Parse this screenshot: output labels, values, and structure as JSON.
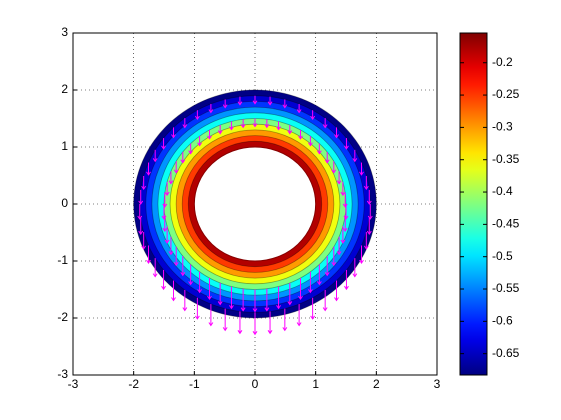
{
  "chart_data": {
    "type": "contour",
    "r": [
      1,
      1.1,
      1.2,
      1.3,
      1.4,
      1.5,
      1.6,
      1.7,
      1.8,
      1.9,
      2
    ],
    "values": [
      -0.17,
      -0.18,
      -0.25,
      -0.3,
      -0.36,
      -0.42,
      -0.48,
      -0.54,
      -0.59,
      -0.64,
      -0.68
    ],
    "xlim": [
      -3,
      3
    ],
    "ylim": [
      -3,
      3
    ],
    "xticks": [
      -3,
      -2,
      -1,
      0,
      1,
      2,
      3
    ],
    "yticks": [
      -3,
      -2,
      -1,
      0,
      1,
      2,
      3
    ],
    "grid": true,
    "colormap": "jet",
    "arrow_color": "#ff00ff",
    "clim": [
      -0.683,
      -0.154
    ],
    "cticks": [
      -0.2,
      -0.25,
      -0.3,
      -0.35,
      -0.4,
      -0.45,
      -0.5,
      -0.55,
      -0.6,
      -0.65
    ]
  }
}
